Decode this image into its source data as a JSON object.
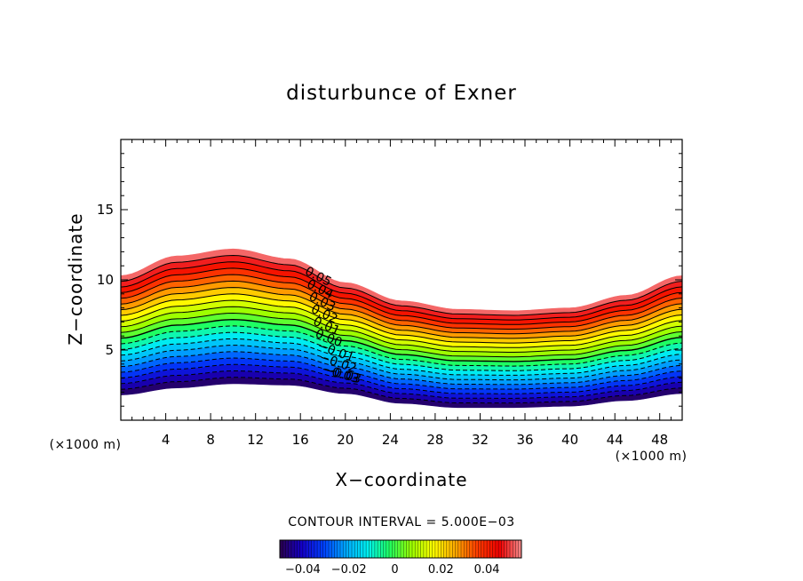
{
  "chart_data": {
    "type": "contour",
    "title": "disturbunce of Exner",
    "xlabel": "X−coordinate",
    "ylabel": "Z−coordinate",
    "x_unit": "(×1000 m)",
    "y_unit": "(×1000 m)",
    "xlim": [
      0,
      50
    ],
    "ylim": [
      0,
      20
    ],
    "x_ticks": [
      4,
      8,
      12,
      16,
      20,
      24,
      28,
      32,
      36,
      40,
      44,
      48
    ],
    "y_ticks": [
      5,
      10,
      15
    ],
    "x_tick_labels": [
      "4",
      "8",
      "12",
      "16",
      "20",
      "24",
      "28",
      "32",
      "36",
      "40",
      "44",
      "48"
    ],
    "y_tick_labels": [
      "5",
      "10",
      "15"
    ],
    "contour_interval_text": "CONTOUR INTERVAL = 5.000E−03",
    "contour_interval": 0.005,
    "value_range": [
      -0.05,
      0.055
    ],
    "field_bottom_profile": {
      "x": [
        0,
        5,
        10,
        15,
        20,
        25,
        30,
        35,
        40,
        45,
        50
      ],
      "z": [
        1.8,
        2.3,
        2.6,
        2.5,
        1.9,
        1.2,
        0.9,
        0.9,
        1.0,
        1.4,
        1.9
      ]
    },
    "field_top_profile": {
      "x": [
        0,
        5,
        10,
        15,
        20,
        25,
        30,
        35,
        40,
        45,
        50
      ],
      "z": [
        10.3,
        11.7,
        12.2,
        11.5,
        9.8,
        8.5,
        7.9,
        7.8,
        8.0,
        8.9,
        10.3
      ]
    },
    "contour_labels": [
      "0.05",
      "0.04",
      "0.03",
      "0.02",
      "0.01",
      "0.00",
      "−0.01",
      "−0.02",
      "−0.03",
      "−0.03"
    ],
    "contour_label_values": [
      0.05,
      0.04,
      0.03,
      0.02,
      0.01,
      0.0,
      -0.01,
      -0.02,
      -0.03,
      -0.03
    ],
    "contour_label_x": 16.5,
    "colorbar": {
      "min": -0.05,
      "max": 0.055,
      "tick_values": [
        -0.04,
        -0.02,
        0,
        0.02,
        0.04
      ],
      "tick_labels": [
        "−0.04",
        "−0.02",
        "0",
        "0.02",
        "0.04"
      ]
    },
    "colormap": [
      "#2a004d",
      "#1400c8",
      "#0040ff",
      "#00a8ff",
      "#00f0f0",
      "#20ff60",
      "#9cff00",
      "#ffff00",
      "#ffa800",
      "#ff3c00",
      "#f00000",
      "#f58c8c"
    ]
  }
}
